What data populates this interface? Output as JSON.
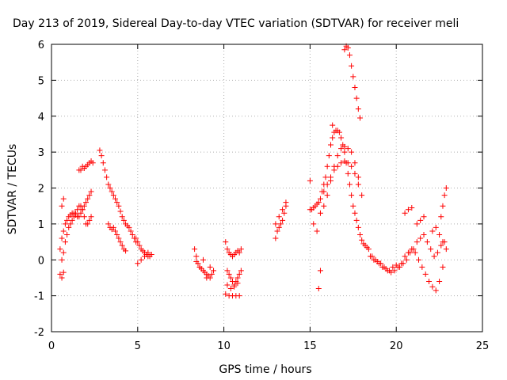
{
  "chart_data": {
    "type": "scatter",
    "title": "Day 213 of 2019, Sidereal Day-to-day VTEC variation (SDTVAR) for receiver meli",
    "xlabel": "GPS time / hours",
    "ylabel": "SDTVAR / TECUs",
    "xlim": [
      0,
      25
    ],
    "ylim": [
      -2,
      6
    ],
    "xticks": [
      "0",
      "5",
      "10",
      "15",
      "20",
      "25"
    ],
    "yticks": [
      "-2",
      "-1",
      "0",
      "1",
      "2",
      "3",
      "4",
      "5",
      "6"
    ],
    "grid": true,
    "marker": "+",
    "color": "#ff0000",
    "series": [
      {
        "name": "SDTVAR",
        "x": [
          0.5,
          0.6,
          0.7,
          0.8,
          0.9,
          1.0,
          1.1,
          1.2,
          1.3,
          1.4,
          1.5,
          1.6,
          1.7,
          1.8,
          1.9,
          2.0,
          2.1,
          2.2,
          2.3,
          0.6,
          0.7,
          0.8,
          0.9,
          1.0,
          1.1,
          1.2,
          1.3,
          1.4,
          1.5,
          1.6,
          1.7,
          1.8,
          1.9,
          2.0,
          2.1,
          2.2,
          2.3,
          0.5,
          0.6,
          0.7,
          1.6,
          1.7,
          1.8,
          1.9,
          2.0,
          2.1,
          2.2,
          2.3,
          2.4,
          0.6,
          0.7,
          2.8,
          2.9,
          3.0,
          3.1,
          3.2,
          3.3,
          3.4,
          3.5,
          3.6,
          3.7,
          3.8,
          3.9,
          4.0,
          4.1,
          4.2,
          4.3,
          4.4,
          4.5,
          4.6,
          4.7,
          4.8,
          4.9,
          3.3,
          3.4,
          3.5,
          3.6,
          3.7,
          3.8,
          3.9,
          4.0,
          4.1,
          4.2,
          4.3,
          4.9,
          5.0,
          5.1,
          5.2,
          5.3,
          5.4,
          5.5,
          5.6,
          5.7,
          5.8,
          5.0,
          5.2,
          5.4,
          5.6,
          8.3,
          8.4,
          8.5,
          8.6,
          8.7,
          8.8,
          8.9,
          9.0,
          9.1,
          9.2,
          9.3,
          9.4,
          8.4,
          8.6,
          8.8,
          9.0,
          9.2,
          10.1,
          10.2,
          10.3,
          10.4,
          10.5,
          10.6,
          10.7,
          10.8,
          10.9,
          11.0,
          10.2,
          10.3,
          10.4,
          10.5,
          10.6,
          10.7,
          10.8,
          10.9,
          11.0,
          10.1,
          10.3,
          10.5,
          10.7,
          10.9,
          10.2,
          10.4,
          10.6,
          10.8,
          13.0,
          13.1,
          13.2,
          13.3,
          13.4,
          13.5,
          13.6,
          13.0,
          13.2,
          13.4,
          13.6,
          15.0,
          15.1,
          15.2,
          15.3,
          15.4,
          15.5,
          15.6,
          15.7,
          15.8,
          15.9,
          16.0,
          16.1,
          16.2,
          16.3,
          16.4,
          16.5,
          16.6,
          16.7,
          16.8,
          16.9,
          17.0,
          17.1,
          17.2,
          17.3,
          17.4,
          17.5,
          17.6,
          17.7,
          17.8,
          17.9,
          18.0,
          18.1,
          18.2,
          18.3,
          15.6,
          15.8,
          16.0,
          16.2,
          16.4,
          16.6,
          16.8,
          17.0,
          17.2,
          17.4,
          17.6,
          17.8,
          18.0,
          15.8,
          16.0,
          16.2,
          16.4,
          16.6,
          16.8,
          17.0,
          17.2,
          17.4,
          17.6,
          17.8,
          15.5,
          15.6,
          16.3,
          17.0,
          17.1,
          17.2,
          17.3,
          17.4,
          17.5,
          17.6,
          17.7,
          17.8,
          17.9,
          15.0,
          15.2,
          15.4,
          18.4,
          18.6,
          18.8,
          19.0,
          19.2,
          19.4,
          19.6,
          19.8,
          20.0,
          20.2,
          20.4,
          20.6,
          20.8,
          21.0,
          21.2,
          21.4,
          21.6,
          21.8,
          22.0,
          22.2,
          22.4,
          22.6,
          22.8,
          18.5,
          18.7,
          18.9,
          19.1,
          19.3,
          19.5,
          19.7,
          19.9,
          20.1,
          20.3,
          20.5,
          20.7,
          20.9,
          21.1,
          21.3,
          21.5,
          21.7,
          21.9,
          22.1,
          22.3,
          22.5,
          22.7,
          20.5,
          20.7,
          20.9,
          21.2,
          21.4,
          21.6,
          22.1,
          22.3,
          22.5,
          22.7,
          22.9,
          22.6,
          22.7,
          22.8,
          22.9
        ],
        "y": [
          0.3,
          0.6,
          0.8,
          1.0,
          1.1,
          1.2,
          1.25,
          1.3,
          1.3,
          1.25,
          1.2,
          1.2,
          1.3,
          1.4,
          1.5,
          1.6,
          1.7,
          1.8,
          1.9,
          0.0,
          0.2,
          0.5,
          0.7,
          0.9,
          1.0,
          1.1,
          1.2,
          1.3,
          1.4,
          1.5,
          1.5,
          1.4,
          1.2,
          1.0,
          1.0,
          1.1,
          1.2,
          -0.4,
          -0.5,
          -0.35,
          2.5,
          2.5,
          2.6,
          2.55,
          2.6,
          2.65,
          2.7,
          2.75,
          2.7,
          1.5,
          1.7,
          3.05,
          2.9,
          2.7,
          2.5,
          2.3,
          2.1,
          2.0,
          1.9,
          1.8,
          1.7,
          1.6,
          1.5,
          1.35,
          1.2,
          1.1,
          1.0,
          0.95,
          0.9,
          0.8,
          0.7,
          0.6,
          0.5,
          1.0,
          0.9,
          0.85,
          0.9,
          0.8,
          0.7,
          0.6,
          0.5,
          0.4,
          0.3,
          0.25,
          0.6,
          0.5,
          0.4,
          0.3,
          0.25,
          0.2,
          0.15,
          0.1,
          0.1,
          0.15,
          -0.1,
          0.0,
          0.1,
          0.2,
          0.3,
          0.1,
          -0.1,
          -0.2,
          -0.25,
          -0.3,
          -0.35,
          -0.4,
          -0.45,
          -0.5,
          -0.4,
          -0.3,
          -0.05,
          -0.2,
          0.0,
          -0.5,
          -0.2,
          0.5,
          0.3,
          0.2,
          0.15,
          0.1,
          0.15,
          0.2,
          0.25,
          0.2,
          0.3,
          -0.3,
          -0.4,
          -0.5,
          -0.6,
          -0.7,
          -0.6,
          -0.5,
          -0.4,
          -0.3,
          -0.95,
          -1.0,
          -1.0,
          -1.0,
          -1.0,
          -0.7,
          -0.8,
          -0.75,
          -0.65,
          0.6,
          0.8,
          0.9,
          1.0,
          1.1,
          1.3,
          1.5,
          1.0,
          1.2,
          1.4,
          1.6,
          1.4,
          1.4,
          1.45,
          1.5,
          1.55,
          1.6,
          1.7,
          1.9,
          2.1,
          2.3,
          2.6,
          2.9,
          3.2,
          3.4,
          3.55,
          3.6,
          3.6,
          3.55,
          3.4,
          3.2,
          3.0,
          2.7,
          2.4,
          2.1,
          1.8,
          1.5,
          1.3,
          1.1,
          0.9,
          0.7,
          0.55,
          0.45,
          0.4,
          0.35,
          1.3,
          1.5,
          1.8,
          2.2,
          2.6,
          2.9,
          3.1,
          3.15,
          3.1,
          3.0,
          2.7,
          2.3,
          1.8,
          1.9,
          2.1,
          2.3,
          2.5,
          2.6,
          2.7,
          2.75,
          2.7,
          2.6,
          2.4,
          2.1,
          -0.8,
          -0.3,
          3.75,
          5.85,
          5.95,
          5.9,
          5.7,
          5.4,
          5.1,
          4.8,
          4.5,
          4.2,
          3.95,
          2.2,
          1.0,
          0.8,
          0.3,
          0.1,
          0.0,
          -0.1,
          -0.2,
          -0.25,
          -0.3,
          -0.2,
          -0.15,
          -0.2,
          -0.1,
          0.0,
          0.2,
          0.3,
          0.5,
          0.6,
          0.7,
          0.5,
          0.3,
          0.1,
          0.2,
          0.4,
          0.5,
          0.1,
          0.0,
          -0.05,
          -0.1,
          -0.2,
          -0.3,
          -0.35,
          -0.3,
          -0.2,
          -0.1,
          0.1,
          0.2,
          0.3,
          0.2,
          0.0,
          -0.2,
          -0.4,
          -0.6,
          -0.75,
          -0.85,
          -0.6,
          -0.2,
          1.3,
          1.4,
          1.45,
          1.0,
          1.1,
          1.2,
          0.8,
          0.9,
          0.7,
          0.5,
          0.3,
          1.2,
          1.5,
          1.8,
          2.0
        ]
      }
    ]
  }
}
